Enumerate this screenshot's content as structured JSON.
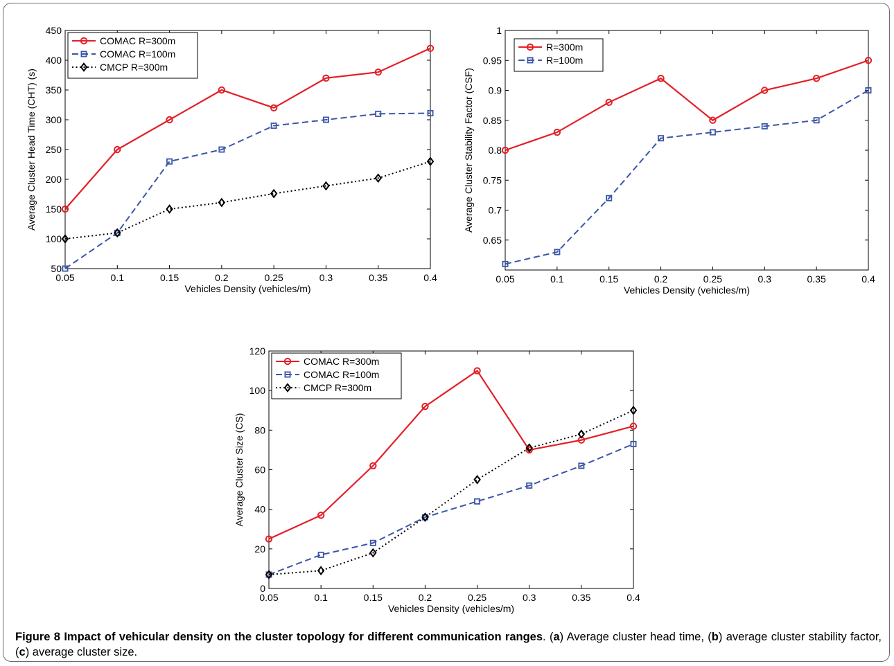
{
  "caption": {
    "label": "Figure 8",
    "title": "Impact of vehicular density on the cluster topology for different communication ranges",
    "period": ". (",
    "letter_a": "a",
    "text_a": ") Average cluster head time, (",
    "letter_b": "b",
    "text_b": ") average cluster stability factor, (",
    "letter_c": "c",
    "text_c": ") average cluster size."
  },
  "colors": {
    "red": "#e41f26",
    "blue": "#3a56a8",
    "black": "#000000"
  },
  "chart_data": [
    {
      "type": "line",
      "id": "cht",
      "xlabel": "Vehicles Density (vehicles/m)",
      "ylabel": "Average Cluster Head Time (CHT) (s)",
      "x": [
        0.05,
        0.1,
        0.15,
        0.2,
        0.25,
        0.3,
        0.35,
        0.4
      ],
      "xticks": [
        "0.05",
        "0.1",
        "0.15",
        "0.2",
        "0.25",
        "0.3",
        "0.35",
        "0.4"
      ],
      "ylim": [
        50,
        450
      ],
      "yticks": [
        "50",
        "100",
        "150",
        "200",
        "250",
        "300",
        "350",
        "400",
        "450"
      ],
      "legend_position": "top-left",
      "series": [
        {
          "name": "COMAC R=300m",
          "color": "#e41f26",
          "style": "solid",
          "marker": "circle",
          "values": [
            150,
            250,
            300,
            350,
            320,
            370,
            380,
            420
          ]
        },
        {
          "name": "COMAC R=100m",
          "color": "#3a56a8",
          "style": "dashed",
          "marker": "square",
          "values": [
            50,
            110,
            230,
            250,
            290,
            300,
            310,
            311
          ]
        },
        {
          "name": "CMCP R=300m",
          "color": "#000000",
          "style": "dotted",
          "marker": "diamond",
          "values": [
            100,
            110,
            150,
            161,
            176,
            189,
            202,
            230
          ]
        }
      ]
    },
    {
      "type": "line",
      "id": "csf",
      "xlabel": "Vehicles Density (vehicles/m)",
      "ylabel": "Average Cluster Stability Factor (CSF)",
      "x": [
        0.05,
        0.1,
        0.15,
        0.2,
        0.25,
        0.3,
        0.35,
        0.4
      ],
      "xticks": [
        "0.05",
        "0.1",
        "0.15",
        "0.2",
        "0.25",
        "0.3",
        "0.35",
        "0.4"
      ],
      "ylim": [
        0.6,
        1.0
      ],
      "yticks": [
        "0.65",
        "0.7",
        "0.75",
        "0.8",
        "0.85",
        "0.9",
        "0.95",
        "1"
      ],
      "legend_position": "top-left",
      "series": [
        {
          "name": "R=300m",
          "color": "#e41f26",
          "style": "solid",
          "marker": "circle",
          "values": [
            0.8,
            0.83,
            0.88,
            0.92,
            0.85,
            0.9,
            0.92,
            0.95
          ]
        },
        {
          "name": "R=100m",
          "color": "#3a56a8",
          "style": "dashed",
          "marker": "square",
          "values": [
            0.61,
            0.63,
            0.72,
            0.82,
            0.83,
            0.84,
            0.85,
            0.9
          ]
        }
      ]
    },
    {
      "type": "line",
      "id": "cs",
      "xlabel": "Vehicles Density  (vehicles/m)",
      "ylabel": "Average Cluster Size (CS)",
      "x": [
        0.05,
        0.1,
        0.15,
        0.2,
        0.25,
        0.3,
        0.35,
        0.4
      ],
      "xticks": [
        "0.05",
        "0.1",
        "0.15",
        "0.2",
        "0.25",
        "0.3",
        "0.35",
        "0.4"
      ],
      "ylim": [
        0,
        120
      ],
      "yticks": [
        "0",
        "20",
        "40",
        "60",
        "80",
        "100",
        "120"
      ],
      "legend_position": "top-left",
      "series": [
        {
          "name": "COMAC R=300m",
          "color": "#e41f26",
          "style": "solid",
          "marker": "circle",
          "values": [
            25,
            37,
            62,
            92,
            110,
            70,
            75,
            82
          ]
        },
        {
          "name": "COMAC R=100m",
          "color": "#3a56a8",
          "style": "dashed",
          "marker": "square",
          "values": [
            7,
            17,
            23,
            36,
            44,
            52,
            62,
            73
          ]
        },
        {
          "name": "CMCP R=300m",
          "color": "#000000",
          "style": "dotted",
          "marker": "diamond",
          "values": [
            7,
            9,
            18,
            36,
            55,
            71,
            78,
            90
          ]
        }
      ]
    }
  ]
}
